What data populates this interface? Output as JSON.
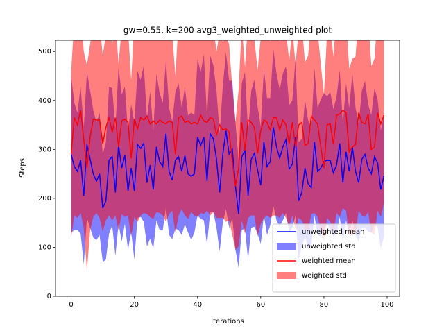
{
  "chart_data": {
    "type": "line_band",
    "title": "gw=0.55, k=200 avg3_weighted_unweighted plot",
    "x_label": "Iterations",
    "y_label": "Steps",
    "x": [
      0,
      1,
      2,
      3,
      4,
      5,
      6,
      7,
      8,
      9,
      10,
      11,
      12,
      13,
      14,
      15,
      16,
      17,
      18,
      19,
      20,
      21,
      22,
      23,
      24,
      25,
      26,
      27,
      28,
      29,
      30,
      31,
      32,
      33,
      34,
      35,
      36,
      37,
      38,
      39,
      40,
      41,
      42,
      43,
      44,
      45,
      46,
      47,
      48,
      49,
      50,
      51,
      52,
      53,
      54,
      55,
      56,
      57,
      58,
      59,
      60,
      61,
      62,
      63,
      64,
      65,
      66,
      67,
      68,
      69,
      70,
      71,
      72,
      73,
      74,
      75,
      76,
      77,
      78,
      79,
      80,
      81,
      82,
      83,
      84,
      85,
      86,
      87,
      88,
      89,
      90,
      91,
      92,
      93,
      94,
      95,
      96,
      97,
      98,
      99
    ],
    "series": [
      {
        "name": "unweighted mean",
        "color": "#0000ff",
        "values": [
          290,
          265,
          255,
          278,
          205,
          310,
          280,
          250,
          235,
          250,
          180,
          195,
          278,
          285,
          212,
          308,
          262,
          288,
          215,
          262,
          215,
          310,
          302,
          312,
          232,
          268,
          218,
          305,
          275,
          265,
          332,
          255,
          237,
          278,
          285,
          255,
          287,
          250,
          245,
          250,
          325,
          308,
          325,
          235,
          332,
          322,
          280,
          212,
          290,
          338,
          290,
          300,
          225,
          168,
          285,
          298,
          205,
          280,
          292,
          258,
          227,
          315,
          265,
          275,
          345,
          305,
          282,
          305,
          320,
          260,
          270,
          325,
          195,
          212,
          262,
          230,
          222,
          315,
          255,
          262,
          275,
          278,
          277,
          252,
          268,
          312,
          232,
          295,
          255,
          305,
          255,
          232,
          280,
          290,
          262,
          250,
          285,
          272,
          218,
          246
        ]
      },
      {
        "name": "weighted mean",
        "color": "#ff0000",
        "values": [
          290,
          365,
          350,
          380,
          320,
          262,
          325,
          362,
          360,
          360,
          312,
          345,
          365,
          335,
          365,
          305,
          358,
          362,
          355,
          282,
          362,
          342,
          365,
          360,
          368,
          352,
          358,
          352,
          360,
          355,
          352,
          358,
          355,
          290,
          365,
          368,
          355,
          358,
          352,
          355,
          352,
          370,
          358,
          355,
          365,
          362,
          330,
          350,
          340,
          342,
          335,
          275,
          225,
          262,
          355,
          298,
          360,
          355,
          345,
          292,
          338,
          360,
          355,
          340,
          365,
          365,
          340,
          360,
          350,
          312,
          355,
          305,
          350,
          355,
          308,
          312,
          368,
          360,
          352,
          305,
          262,
          350,
          352,
          310,
          370,
          372,
          380,
          375,
          295,
          305,
          310,
          375,
          355,
          352,
          372,
          300,
          305,
          375,
          352,
          370
        ]
      }
    ],
    "bands": [
      {
        "name": "unweighted std",
        "color": "#0000ff",
        "std": [
          160,
          130,
          120,
          150,
          140,
          150,
          140,
          130,
          120,
          125,
          110,
          120,
          150,
          140,
          130,
          160,
          150,
          140,
          120,
          130,
          140,
          150,
          140,
          160,
          130,
          150,
          120,
          150,
          140,
          130,
          150,
          130,
          120,
          140,
          150,
          130,
          140,
          120,
          130,
          120,
          160,
          150,
          170,
          130,
          160,
          150,
          140,
          120,
          140,
          160,
          150,
          140,
          130,
          110,
          150,
          160,
          130,
          140,
          150,
          130,
          120,
          150,
          140,
          130,
          160,
          150,
          140,
          150,
          150,
          130,
          130,
          160,
          120,
          110,
          140,
          130,
          120,
          150,
          130,
          140,
          140,
          130,
          140,
          130,
          140,
          150,
          120,
          140,
          130,
          150,
          130,
          120,
          140,
          150,
          130,
          120,
          140,
          130,
          120,
          125
        ]
      },
      {
        "name": "weighted std",
        "color": "#ff0000",
        "std": [
          170,
          200,
          190,
          210,
          180,
          210,
          190,
          200,
          190,
          200,
          180,
          190,
          200,
          180,
          200,
          170,
          190,
          200,
          190,
          160,
          200,
          190,
          200,
          190,
          200,
          190,
          200,
          180,
          190,
          190,
          200,
          190,
          180,
          160,
          200,
          190,
          190,
          200,
          180,
          190,
          190,
          200,
          190,
          180,
          200,
          190,
          170,
          190,
          180,
          190,
          180,
          150,
          130,
          160,
          200,
          170,
          200,
          190,
          180,
          170,
          190,
          200,
          190,
          180,
          200,
          200,
          180,
          190,
          190,
          170,
          190,
          170,
          190,
          200,
          170,
          180,
          200,
          190,
          190,
          170,
          150,
          190,
          200,
          180,
          200,
          210,
          200,
          200,
          170,
          180,
          180,
          200,
          190,
          190,
          200,
          170,
          180,
          200,
          190,
          180
        ]
      }
    ],
    "xlim": [
      -4.95,
      103.95
    ],
    "ylim": [
      0,
      523
    ],
    "xticks": [
      0,
      20,
      40,
      60,
      80,
      100
    ],
    "yticks": [
      0,
      100,
      200,
      300,
      400,
      500
    ],
    "legend": "lower right"
  }
}
